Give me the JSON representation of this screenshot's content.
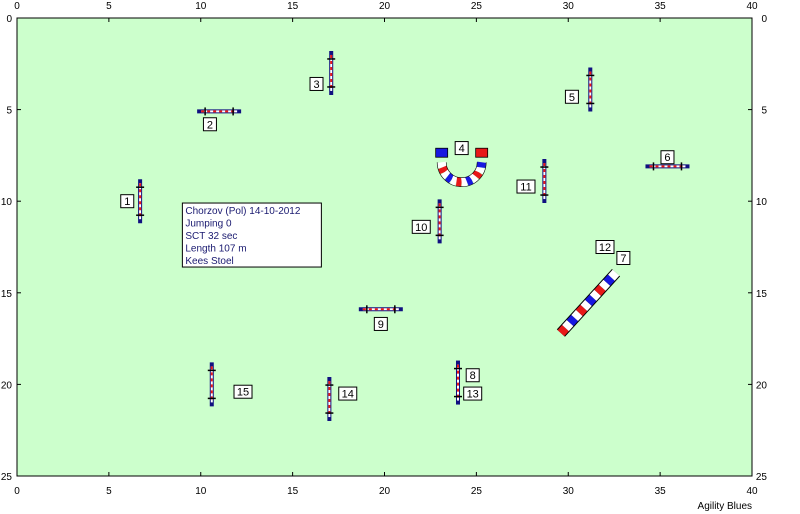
{
  "course": {
    "grid": {
      "x_max": 40,
      "y_max": 25,
      "x_ticks": [
        0,
        5,
        10,
        15,
        20,
        25,
        30,
        35,
        40
      ],
      "y_ticks": [
        0,
        5,
        10,
        15,
        20,
        25
      ]
    },
    "colors": {
      "field": "#ccffcc",
      "border": "#000000",
      "bar_red": "#e81818",
      "bar_blue": "#1818e0",
      "pole": "#101080",
      "text": "#1a1a70"
    },
    "info_lines": [
      "Chorzov (Pol) 14-10-2012",
      "Jumping 0",
      "SCT 32 sec",
      "Length 107 m",
      "Kees Stoel"
    ],
    "brand": "Agility Blues",
    "obstacles": [
      {
        "num": "1",
        "type": "jump",
        "x": 6.7,
        "y": 10.0,
        "orient": "v",
        "label_at": [
          6.0,
          10.0
        ]
      },
      {
        "num": "2",
        "type": "jump",
        "x": 11.0,
        "y": 5.1,
        "orient": "h",
        "label_at": [
          10.5,
          5.8
        ]
      },
      {
        "num": "3",
        "type": "jump",
        "x": 17.1,
        "y": 3.0,
        "orient": "v",
        "label_at": [
          16.3,
          3.6
        ]
      },
      {
        "num": "4",
        "type": "tunnel",
        "x": 24.2,
        "y": 7.6,
        "label_at": [
          24.2,
          7.1
        ]
      },
      {
        "num": "5",
        "type": "jump",
        "x": 31.2,
        "y": 3.9,
        "orient": "v",
        "label_at": [
          30.2,
          4.3
        ]
      },
      {
        "num": "6",
        "type": "jump",
        "x": 35.4,
        "y": 8.1,
        "orient": "h",
        "label_at": [
          35.4,
          7.6
        ]
      },
      {
        "num": "7",
        "type": "walk",
        "x1": 29.6,
        "y1": 17.2,
        "x2": 32.6,
        "y2": 13.9,
        "label_at": [
          33.0,
          13.1
        ]
      },
      {
        "num": "8",
        "type": "jump",
        "x": 24.0,
        "y": 19.9,
        "orient": "v",
        "label_at": [
          24.8,
          19.5
        ]
      },
      {
        "num": "9",
        "type": "jump",
        "x": 19.8,
        "y": 15.9,
        "orient": "h",
        "label_at": [
          19.8,
          16.7
        ]
      },
      {
        "num": "10",
        "type": "jump",
        "x": 23.0,
        "y": 11.1,
        "orient": "v",
        "label_at": [
          22.0,
          11.4
        ]
      },
      {
        "num": "11",
        "type": "jump",
        "x": 28.7,
        "y": 8.9,
        "orient": "v",
        "label_at": [
          27.7,
          9.2
        ]
      },
      {
        "num": "12",
        "type": "label",
        "label_at": [
          32.0,
          12.5
        ]
      },
      {
        "num": "13",
        "type": "label",
        "label_at": [
          24.8,
          20.5
        ]
      },
      {
        "num": "14",
        "type": "jump",
        "x": 17.0,
        "y": 20.8,
        "orient": "v",
        "label_at": [
          18.0,
          20.5
        ]
      },
      {
        "num": "15",
        "type": "jump",
        "x": 10.6,
        "y": 20.0,
        "orient": "v",
        "label_at": [
          12.3,
          20.4
        ]
      }
    ]
  }
}
